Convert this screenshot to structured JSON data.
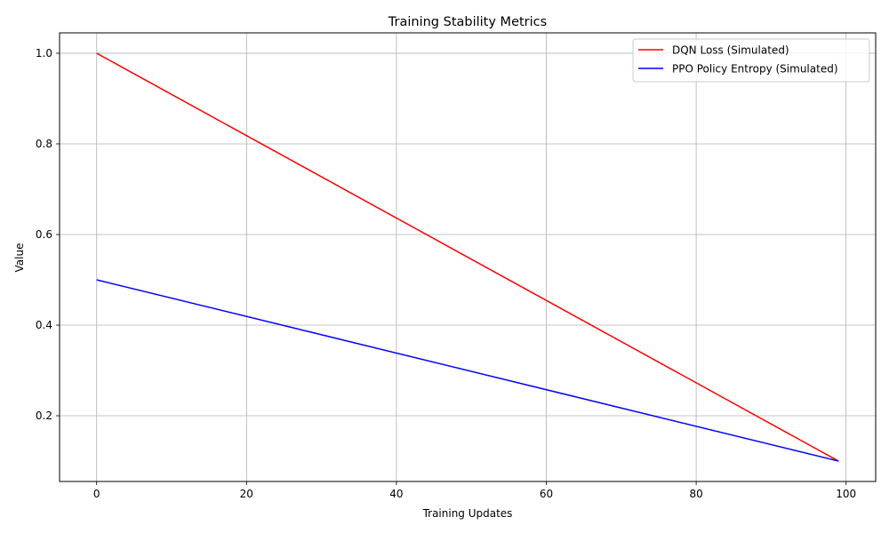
{
  "chart_data": {
    "type": "line",
    "title": "Training Stability Metrics",
    "xlabel": "Training Updates",
    "ylabel": "Value",
    "xlim": [
      -4.95,
      103.95
    ],
    "ylim": [
      0.055,
      1.045
    ],
    "xticks": [
      0,
      20,
      40,
      60,
      80,
      100
    ],
    "yticks": [
      0.2,
      0.4,
      0.6,
      0.8,
      1.0
    ],
    "xtick_labels": [
      "0",
      "20",
      "40",
      "60",
      "80",
      "100"
    ],
    "ytick_labels": [
      "0.2",
      "0.4",
      "0.6",
      "0.8",
      "1.0"
    ],
    "grid": true,
    "legend_position": "top-right",
    "series": [
      {
        "name": "DQN Loss (Simulated)",
        "color": "#ff0000",
        "x": [
          0,
          99
        ],
        "y": [
          1.0,
          0.1
        ]
      },
      {
        "name": "PPO Policy Entropy (Simulated)",
        "color": "#0000ff",
        "x": [
          0,
          99
        ],
        "y": [
          0.5,
          0.1
        ]
      }
    ]
  }
}
